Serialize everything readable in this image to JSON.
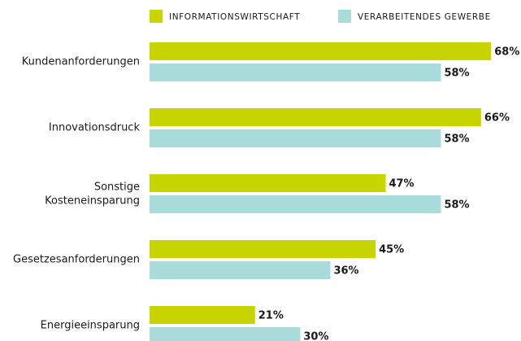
{
  "chart_data": {
    "type": "bar",
    "orientation": "horizontal",
    "categories": [
      "Kundenanforderungen",
      "Innovationsdruck",
      "Sonstige\nKosteneinsparung",
      "Gesetzesanforderungen",
      "Energieeinsparung"
    ],
    "series": [
      {
        "name": "INFORMATIONSWIRTSCHAFT",
        "color": "#c8d400",
        "values": [
          68,
          66,
          47,
          45,
          21
        ],
        "value_labels": [
          "68%",
          "66%",
          "47%",
          "45%",
          "21%"
        ]
      },
      {
        "name": "VERARBEITENDES GEWERBE",
        "color": "#a9dbdb",
        "values": [
          58,
          58,
          58,
          36,
          30
        ],
        "value_labels": [
          "58%",
          "58%",
          "58%",
          "36%",
          "30%"
        ]
      }
    ],
    "legend": "top"
  }
}
